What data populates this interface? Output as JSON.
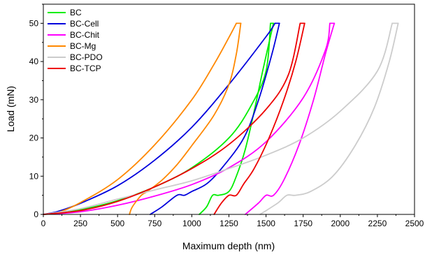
{
  "chart_data": {
    "type": "line",
    "xlabel": "Maximum depth (nm)",
    "ylabel": "Load (mN)",
    "xlim": [
      0,
      2500
    ],
    "ylim": [
      0,
      55
    ],
    "xticks": [
      0,
      250,
      500,
      750,
      1000,
      1250,
      1500,
      1750,
      2000,
      2250,
      2500
    ],
    "yticks": [
      0,
      10,
      20,
      30,
      40,
      50
    ],
    "grid": false,
    "legend_position": "top-left",
    "series": [
      {
        "name": "BC",
        "color": "#00ee00",
        "loading": [
          [
            0,
            0
          ],
          [
            100,
            0.3
          ],
          [
            250,
            1.2
          ],
          [
            500,
            3.6
          ],
          [
            750,
            7.2
          ],
          [
            1000,
            12.2
          ],
          [
            1250,
            20
          ],
          [
            1400,
            28.5
          ],
          [
            1500,
            37.5
          ],
          [
            1530,
            50
          ]
        ],
        "hold": [
          [
            1530,
            50
          ],
          [
            1550,
            50
          ]
        ],
        "unloading": [
          [
            1550,
            50
          ],
          [
            1480,
            38
          ],
          [
            1420,
            27
          ],
          [
            1360,
            17
          ],
          [
            1300,
            10
          ],
          [
            1250,
            6
          ],
          [
            1180,
            5
          ],
          [
            1140,
            5
          ],
          [
            1100,
            2
          ],
          [
            1050,
            0
          ]
        ]
      },
      {
        "name": "BC-Cell",
        "color": "#0000dd",
        "loading": [
          [
            0,
            0
          ],
          [
            100,
            0.8
          ],
          [
            250,
            2.9
          ],
          [
            500,
            7.5
          ],
          [
            750,
            14.2
          ],
          [
            1000,
            22.8
          ],
          [
            1250,
            34
          ],
          [
            1500,
            46.5
          ],
          [
            1560,
            50
          ]
        ],
        "hold": [
          [
            1560,
            50
          ],
          [
            1590,
            50
          ]
        ],
        "unloading": [
          [
            1590,
            50
          ],
          [
            1540,
            42
          ],
          [
            1450,
            30
          ],
          [
            1350,
            20
          ],
          [
            1200,
            12
          ],
          [
            1100,
            8
          ],
          [
            1000,
            6
          ],
          [
            950,
            5
          ],
          [
            900,
            5
          ],
          [
            800,
            2
          ],
          [
            720,
            0
          ]
        ]
      },
      {
        "name": "BC-Chit",
        "color": "#ff00ff",
        "loading": [
          [
            0,
            0
          ],
          [
            250,
            0.7
          ],
          [
            500,
            2.4
          ],
          [
            750,
            4.8
          ],
          [
            1000,
            7.8
          ],
          [
            1250,
            12.2
          ],
          [
            1500,
            19
          ],
          [
            1750,
            30.5
          ],
          [
            1900,
            43
          ],
          [
            1930,
            50
          ]
        ],
        "hold": [
          [
            1930,
            50
          ],
          [
            1960,
            50
          ]
        ],
        "unloading": [
          [
            1960,
            50
          ],
          [
            1900,
            42
          ],
          [
            1820,
            30
          ],
          [
            1720,
            18
          ],
          [
            1620,
            9
          ],
          [
            1550,
            5
          ],
          [
            1500,
            5
          ],
          [
            1450,
            3
          ],
          [
            1360,
            0
          ]
        ]
      },
      {
        "name": "BC-Mg",
        "color": "#ff8800",
        "loading": [
          [
            0,
            0
          ],
          [
            100,
            0.5
          ],
          [
            250,
            3.1
          ],
          [
            500,
            9.1
          ],
          [
            750,
            18.2
          ],
          [
            1000,
            30
          ],
          [
            1150,
            39.3
          ],
          [
            1250,
            46.3
          ],
          [
            1300,
            50
          ]
        ],
        "hold": [
          [
            1300,
            50
          ],
          [
            1330,
            50
          ]
        ],
        "unloading": [
          [
            1330,
            50
          ],
          [
            1300,
            42
          ],
          [
            1250,
            34
          ],
          [
            1150,
            26
          ],
          [
            1000,
            18
          ],
          [
            900,
            13
          ],
          [
            800,
            9
          ],
          [
            700,
            6
          ],
          [
            660,
            5
          ],
          [
            600,
            2
          ],
          [
            580,
            0
          ]
        ]
      },
      {
        "name": "BC-PDO",
        "color": "#cccccc",
        "loading": [
          [
            0,
            0
          ],
          [
            250,
            1.5
          ],
          [
            500,
            4
          ],
          [
            750,
            6.4
          ],
          [
            1000,
            8.8
          ],
          [
            1250,
            12
          ],
          [
            1500,
            15.5
          ],
          [
            1750,
            20
          ],
          [
            2000,
            27
          ],
          [
            2250,
            37.5
          ],
          [
            2350,
            50
          ]
        ],
        "hold": [
          [
            2350,
            50
          ],
          [
            2390,
            50
          ]
        ],
        "unloading": [
          [
            2390,
            50
          ],
          [
            2330,
            40
          ],
          [
            2230,
            28
          ],
          [
            2100,
            18
          ],
          [
            1950,
            10
          ],
          [
            1800,
            6
          ],
          [
            1700,
            5
          ],
          [
            1640,
            5
          ],
          [
            1580,
            3
          ],
          [
            1460,
            0
          ]
        ]
      },
      {
        "name": "BC-TCP",
        "color": "#ee0000",
        "loading": [
          [
            0,
            0
          ],
          [
            250,
            1
          ],
          [
            500,
            3.4
          ],
          [
            750,
            7.2
          ],
          [
            1000,
            12
          ],
          [
            1250,
            18.3
          ],
          [
            1500,
            27.5
          ],
          [
            1650,
            36.5
          ],
          [
            1730,
            50
          ]
        ],
        "hold": [
          [
            1730,
            50
          ],
          [
            1760,
            50
          ]
        ],
        "unloading": [
          [
            1760,
            50
          ],
          [
            1700,
            40
          ],
          [
            1620,
            30
          ],
          [
            1520,
            20
          ],
          [
            1420,
            12
          ],
          [
            1350,
            8
          ],
          [
            1300,
            5
          ],
          [
            1250,
            5
          ],
          [
            1200,
            3
          ],
          [
            1150,
            0
          ]
        ]
      }
    ]
  }
}
